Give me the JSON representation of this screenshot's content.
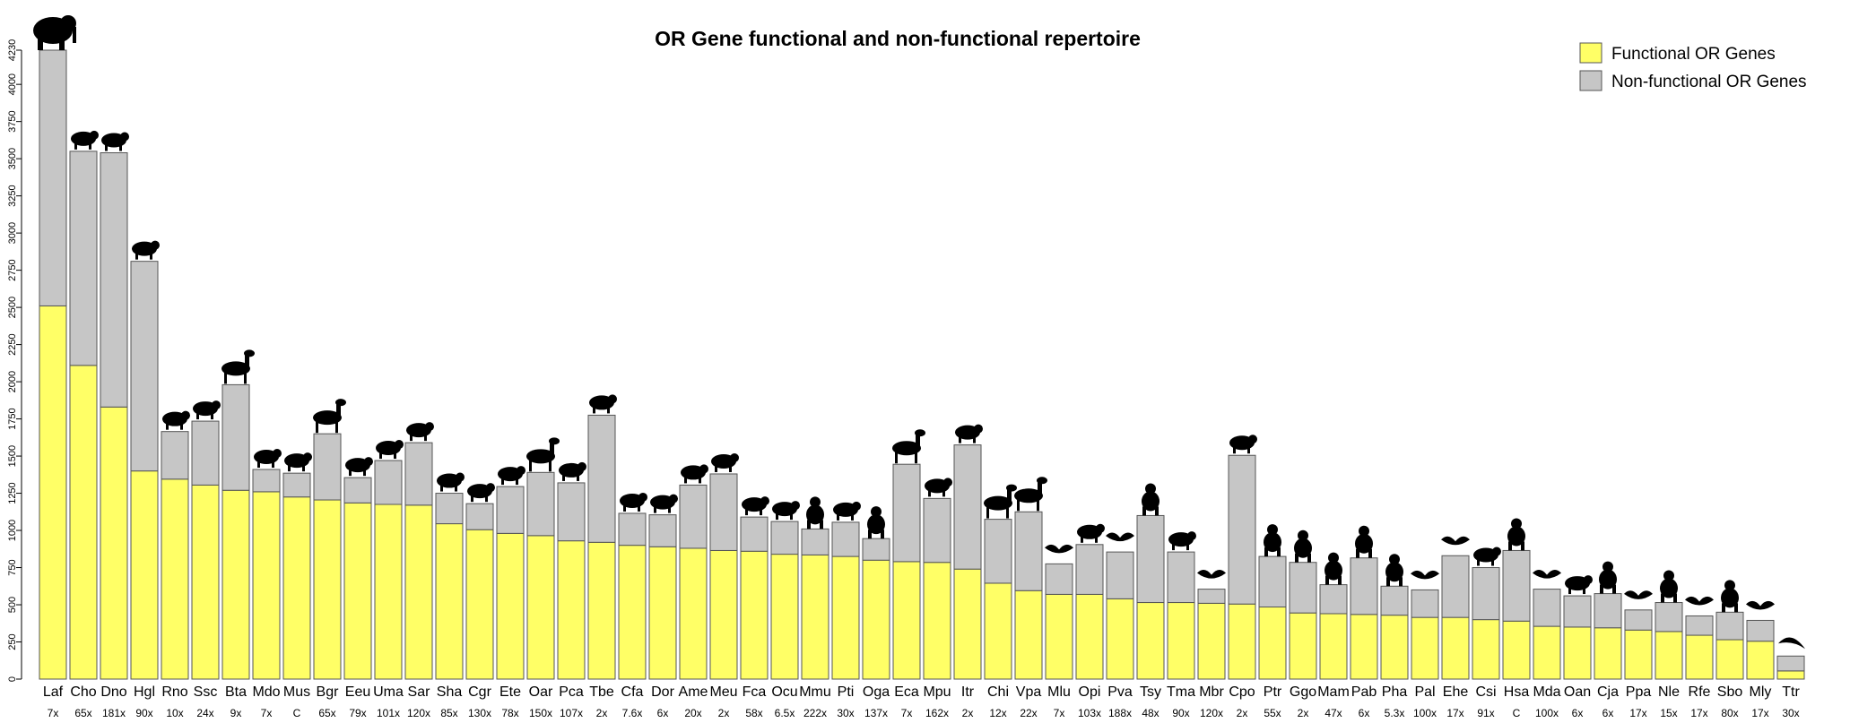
{
  "colors": {
    "functional": "#ffff66",
    "nonfunctional": "#c6c6c6",
    "axis": "#000000",
    "silhouette": "#000000"
  },
  "chart_data": {
    "type": "bar",
    "stacked": true,
    "title": "OR Gene functional and non-functional repertoire",
    "xlabel": "",
    "ylabel": "",
    "ylim": [
      0,
      4250
    ],
    "yticks": [
      0,
      250,
      500,
      750,
      1000,
      1250,
      1500,
      1750,
      2000,
      2250,
      2500,
      2750,
      3000,
      3250,
      3500,
      3750,
      4000,
      4230
    ],
    "grid": false,
    "legend_position": "top-right",
    "legend": [
      "Functional OR Genes",
      "Non-functional OR Genes"
    ],
    "categories": [
      "Laf",
      "Cho",
      "Dno",
      "Hgl",
      "Rno",
      "Ssc",
      "Bta",
      "Mdo",
      "Mus",
      "Bgr",
      "Eeu",
      "Uma",
      "Sar",
      "Sha",
      "Cgr",
      "Ete",
      "Oar",
      "Pca",
      "Tbe",
      "Cfa",
      "Dor",
      "Ame",
      "Meu",
      "Fca",
      "Ocu",
      "Mmu",
      "Pti",
      "Oga",
      "Eca",
      "Mpu",
      "Itr",
      "Chi",
      "Vpa",
      "Mlu",
      "Opi",
      "Pva",
      "Tsy",
      "Tma",
      "Mbr",
      "Cpo",
      "Ptr",
      "Ggo",
      "Mam",
      "Pab",
      "Pha",
      "Pal",
      "Ehe",
      "Csi",
      "Hsa",
      "Mda",
      "Oan",
      "Cja",
      "Ppa",
      "Nle",
      "Rfe",
      "Sbo",
      "Mly",
      "Ttr"
    ],
    "coverage": [
      "7x",
      "65x",
      "181x",
      "90x",
      "10x",
      "24x",
      "9x",
      "7x",
      "C",
      "65x",
      "79x",
      "101x",
      "120x",
      "85x",
      "130x",
      "78x",
      "150x",
      "107x",
      "2x",
      "7.6x",
      "6x",
      "20x",
      "2x",
      "58x",
      "6.5x",
      "222x",
      "30x",
      "137x",
      "7x",
      "162x",
      "2x",
      "12x",
      "22x",
      "7x",
      "103x",
      "188x",
      "48x",
      "90x",
      "120x",
      "2x",
      "55x",
      "2x",
      "47x",
      "6x",
      "5.3x",
      "100x",
      "17x",
      "91x",
      "C",
      "100x",
      "6x",
      "6x",
      "17x",
      "15x",
      "17x",
      "80x",
      "17x",
      "30x"
    ],
    "series": [
      {
        "name": "Functional OR Genes",
        "values": [
          2510,
          2110,
          1830,
          1400,
          1345,
          1305,
          1270,
          1260,
          1225,
          1205,
          1185,
          1175,
          1170,
          1045,
          1005,
          980,
          965,
          930,
          920,
          900,
          890,
          880,
          865,
          860,
          840,
          835,
          825,
          800,
          790,
          785,
          740,
          645,
          595,
          570,
          570,
          540,
          515,
          515,
          510,
          505,
          485,
          445,
          440,
          435,
          430,
          415,
          415,
          400,
          390,
          355,
          350,
          345,
          330,
          320,
          295,
          265,
          255,
          55
        ]
      },
      {
        "name": "Non-functional OR Genes",
        "values": [
          1720,
          1440,
          1710,
          1410,
          320,
          430,
          710,
          150,
          160,
          445,
          170,
          295,
          420,
          205,
          175,
          315,
          425,
          390,
          855,
          215,
          215,
          425,
          515,
          230,
          220,
          175,
          230,
          145,
          655,
          430,
          835,
          430,
          530,
          205,
          335,
          315,
          585,
          340,
          95,
          1000,
          340,
          340,
          195,
          380,
          195,
          185,
          415,
          350,
          475,
          250,
          210,
          230,
          135,
          195,
          130,
          185,
          140,
          100
        ]
      }
    ],
    "silhouettes": [
      "elephant",
      "sloth",
      "armadillo",
      "mole-rat",
      "rat",
      "pig",
      "cow",
      "opossum",
      "mouse",
      "bison",
      "hedgehog",
      "bear",
      "shrew",
      "tasmanian-devil",
      "hamster",
      "tenrec",
      "sheep",
      "raccoon",
      "treeshrew",
      "dog",
      "hedgehog-small",
      "panda",
      "wallaby",
      "cat",
      "rabbit",
      "lemur",
      "tiger",
      "galago",
      "horse",
      "ferret",
      "squirrel",
      "goat",
      "llama",
      "bat",
      "pika",
      "bat",
      "tarsier",
      "manatee",
      "bat",
      "guinea-pig",
      "chimpanzee",
      "gorilla",
      "monkey",
      "orangutan",
      "baboon",
      "bat",
      "bat",
      "hippo",
      "human",
      "bat",
      "platypus",
      "marmoset",
      "bat",
      "gibbon",
      "bat",
      "squirrel-monkey",
      "bat",
      "dolphin"
    ]
  }
}
